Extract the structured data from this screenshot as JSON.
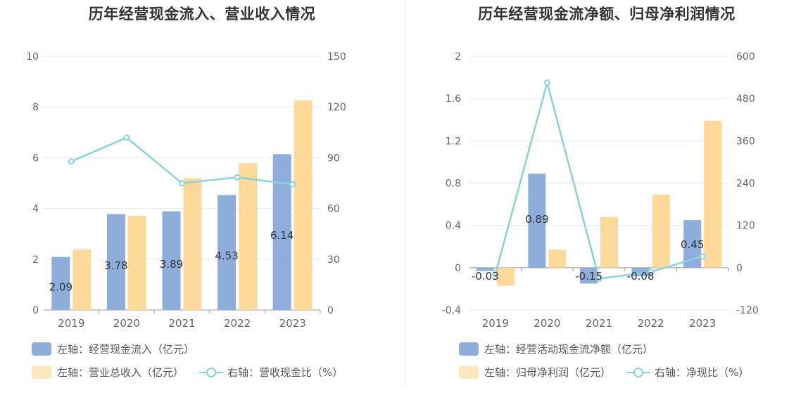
{
  "colors": {
    "blue": "#8eaddb",
    "orange": "#ffd999",
    "line": "#8ad3da",
    "grid": "#e3e7ef",
    "axis_text": "#666666",
    "label_text": "#333333"
  },
  "chart_data": [
    {
      "type": "bar",
      "title": "历年经营现金流入、营业收入情况",
      "categories": [
        "2019",
        "2020",
        "2021",
        "2022",
        "2023"
      ],
      "left_axis": {
        "ylim": [
          0,
          10
        ],
        "ticks": [
          "0",
          "2",
          "4",
          "6",
          "8",
          "10"
        ]
      },
      "right_axis": {
        "ylim": [
          0,
          150
        ],
        "ticks": [
          "0",
          "30",
          "60",
          "90",
          "120",
          "150"
        ]
      },
      "series": [
        {
          "name": "左轴：经营现金流入（亿元）",
          "axis": "left",
          "kind": "bar",
          "color": "#8eaddb",
          "values": [
            2.09,
            3.78,
            3.89,
            4.53,
            6.14
          ],
          "labels": [
            "2.09",
            "3.78",
            "3.89",
            "4.53",
            "6.14"
          ]
        },
        {
          "name": "左轴：营业总收入（亿元）",
          "axis": "left",
          "kind": "bar",
          "color": "#ffd999",
          "values": [
            2.38,
            3.71,
            5.19,
            5.78,
            8.26
          ]
        },
        {
          "name": "右轴：营收现金比（%）",
          "axis": "right",
          "kind": "line",
          "color": "#8ad3da",
          "values": [
            87.8,
            101.9,
            74.9,
            78.4,
            74.3
          ]
        }
      ],
      "grid": true,
      "legend": "bottom"
    },
    {
      "type": "bar",
      "title": "历年经营现金流净额、归母净利润情况",
      "categories": [
        "2019",
        "2020",
        "2021",
        "2022",
        "2023"
      ],
      "left_axis": {
        "ylim": [
          -0.4,
          2
        ],
        "ticks": [
          "-0.4",
          "0",
          "0.4",
          "0.8",
          "1.2",
          "1.6",
          "2"
        ]
      },
      "right_axis": {
        "ylim": [
          -120,
          600
        ],
        "ticks": [
          "-120",
          "0",
          "120",
          "240",
          "360",
          "480",
          "600"
        ]
      },
      "series": [
        {
          "name": "左轴：经营活动现金流净额（亿元）",
          "axis": "left",
          "kind": "bar",
          "color": "#8eaddb",
          "values": [
            -0.03,
            0.89,
            -0.15,
            -0.08,
            0.45
          ],
          "labels": [
            "-0.03",
            "0.89",
            "-0.15",
            "-0.08",
            "0.45"
          ]
        },
        {
          "name": "左轴：归母净利润（亿元）",
          "axis": "left",
          "kind": "bar",
          "color": "#ffd999",
          "values": [
            -0.17,
            0.17,
            0.48,
            0.69,
            1.39
          ]
        },
        {
          "name": "右轴：净现比（%）",
          "axis": "right",
          "kind": "line",
          "color": "#8ad3da",
          "values": [
            -18,
            525,
            -31,
            -12,
            32
          ]
        }
      ],
      "grid": true,
      "legend": "bottom"
    }
  ]
}
